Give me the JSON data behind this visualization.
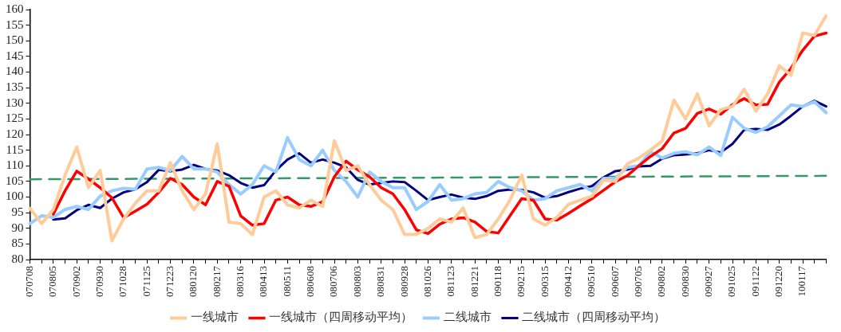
{
  "chart_data": {
    "type": "line",
    "categories": [
      "070708",
      null,
      "070805",
      null,
      "070902",
      null,
      "070930",
      null,
      "071028",
      null,
      "071125",
      null,
      "071223",
      null,
      "080120",
      null,
      "080217",
      null,
      "080316",
      null,
      "080413",
      null,
      "080511",
      null,
      "080608",
      null,
      "080706",
      null,
      "080803",
      null,
      "080831",
      null,
      "080928",
      null,
      "081026",
      null,
      "081123",
      null,
      "081221",
      null,
      "090118",
      null,
      "090215",
      null,
      "090315",
      null,
      "090412",
      null,
      "090510",
      null,
      "090607",
      null,
      "090705",
      null,
      "090802",
      null,
      "090830",
      null,
      "090927",
      null,
      "091025",
      null,
      "091122",
      null,
      "091220",
      null,
      "100117",
      null,
      null
    ],
    "series": [
      {
        "name": "一线城市",
        "color": "#ffcc99",
        "values": [
          96.4,
          91.5,
          96,
          107,
          116,
          103,
          108.5,
          86,
          93,
          98,
          102,
          102,
          111,
          102,
          96,
          101,
          117,
          92,
          91.5,
          88,
          100,
          102,
          97.5,
          96.5,
          99,
          97,
          118,
          108.5,
          110,
          104,
          99,
          96,
          88,
          88,
          90,
          93,
          92,
          96.5,
          87,
          88,
          93,
          99,
          107,
          93,
          91,
          93.5,
          97.7,
          99,
          100.3,
          105.5,
          105,
          110.5,
          112.5,
          115,
          118,
          131,
          125,
          133,
          122.8,
          128,
          129,
          134.5,
          127.5,
          133,
          142,
          139,
          152.5,
          151.7,
          158
        ]
      },
      {
        "name": "一线城市（四周移动平均）",
        "color": "#ff0000",
        "values": [
          null,
          null,
          94.5,
          102,
          108.3,
          105.8,
          103,
          99.8,
          93.4,
          95.5,
          97.7,
          101.5,
          106,
          104,
          100,
          97.5,
          105,
          103.5,
          94,
          91,
          91.5,
          99,
          100,
          97.5,
          97,
          98.5,
          106.5,
          111.5,
          108.7,
          106.5,
          103,
          101,
          96,
          89.5,
          88.3,
          91.3,
          93,
          93.4,
          92,
          89,
          88.5,
          94,
          99.5,
          99,
          93,
          92.6,
          94.8,
          97.2,
          99.5,
          102.2,
          104.9,
          106.8,
          110,
          113,
          115.5,
          120.5,
          122,
          126.8,
          128.2,
          126.5,
          129.6,
          131.5,
          129.5,
          129.7,
          136.8,
          141.2,
          147,
          151.5,
          152.5
        ]
      },
      {
        "name": "二线城市",
        "color": "#99ccff",
        "values": [
          91.5,
          94,
          93.5,
          96,
          97,
          96,
          100.3,
          102,
          102.8,
          102.5,
          109,
          109.5,
          108.5,
          113,
          109,
          109,
          108,
          104,
          101,
          104,
          110,
          108,
          119,
          112,
          110,
          115,
          108.5,
          105,
          100,
          108,
          105,
          103,
          103,
          96,
          98.6,
          104,
          99,
          99.5,
          101,
          101.5,
          105,
          103,
          102,
          99,
          99.5,
          102,
          103,
          104,
          102,
          106,
          106,
          109.5,
          110,
          114.5,
          112.5,
          114,
          114.5,
          113.5,
          116,
          113.3,
          125.5,
          122,
          120.7,
          122.5,
          126,
          129.5,
          129,
          130.5,
          127
        ]
      },
      {
        "name": "二线城市（四周移动平均）",
        "color": "#000080",
        "values": [
          null,
          null,
          92.8,
          93.2,
          95.8,
          97.5,
          96.5,
          99.5,
          101.5,
          102.5,
          104.8,
          108.7,
          108.3,
          108.8,
          110.3,
          109,
          108.5,
          107,
          104.5,
          103,
          103.8,
          108.5,
          112,
          114,
          111,
          112,
          111,
          109.5,
          105.5,
          104,
          104.5,
          105,
          104.8,
          102,
          99,
          100,
          100.8,
          99.8,
          99.4,
          100.3,
          102,
          102.4,
          102.3,
          101.5,
          99.8,
          100.3,
          101.6,
          102.7,
          103.5,
          106.3,
          108.3,
          108.8,
          109.8,
          110,
          112.3,
          113.4,
          113.6,
          114,
          115,
          114.3,
          117,
          121.5,
          121.8,
          121.5,
          123.2,
          126,
          129,
          130.8,
          129
        ]
      },
      {
        "color": "#339966",
        "line_style": "dashed",
        "values": [
          105.7,
          null,
          null,
          null,
          null,
          null,
          null,
          null,
          null,
          null,
          null,
          null,
          null,
          null,
          null,
          null,
          null,
          null,
          null,
          null,
          null,
          null,
          null,
          null,
          null,
          null,
          null,
          null,
          null,
          null,
          null,
          null,
          null,
          null,
          106.2,
          null,
          null,
          null,
          null,
          null,
          null,
          null,
          null,
          null,
          null,
          null,
          null,
          null,
          null,
          null,
          null,
          null,
          null,
          null,
          null,
          null,
          null,
          null,
          null,
          null,
          null,
          null,
          null,
          null,
          null,
          null,
          null,
          null,
          106.8
        ]
      }
    ],
    "ylim": [
      80,
      160
    ],
    "yticks": [
      80,
      85,
      90,
      95,
      100,
      105,
      110,
      115,
      120,
      125,
      130,
      135,
      140,
      145,
      150,
      155,
      160
    ],
    "grid": false,
    "legend": "bottom",
    "marker": "none"
  }
}
